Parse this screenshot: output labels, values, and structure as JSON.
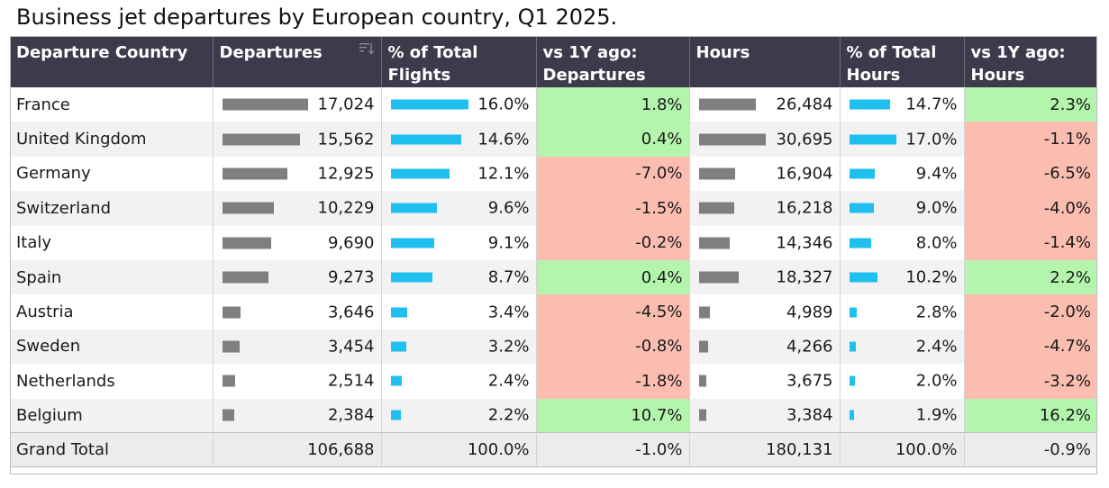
{
  "title": "Business jet departures by European country, Q1 2025.",
  "colors": {
    "header_bg": "#3d3b4b",
    "bar_grey": "#7f7f7f",
    "bar_blue": "#1fbff0",
    "positive": "#b3f5ac",
    "negative": "#fbbdb0"
  },
  "chart_data": {
    "type": "table",
    "title": "Business jet departures by European country, Q1 2025.",
    "columns": [
      "Departure Country",
      "Departures",
      "% of Total Flights",
      "vs 1Y ago: Departures",
      "Hours",
      "% of Total Hours",
      "vs 1Y ago: Hours"
    ],
    "rows": [
      {
        "country": "France",
        "departures": 17024,
        "departures_text": "17,024",
        "pct_flights": 16.0,
        "pct_flights_text": "16.0%",
        "yoy_dep": 1.8,
        "yoy_dep_text": "1.8%",
        "hours": 26484,
        "hours_text": "26,484",
        "pct_hours": 14.7,
        "pct_hours_text": "14.7%",
        "yoy_hours": 2.3,
        "yoy_hours_text": "2.3%"
      },
      {
        "country": "United Kingdom",
        "departures": 15562,
        "departures_text": "15,562",
        "pct_flights": 14.6,
        "pct_flights_text": "14.6%",
        "yoy_dep": 0.4,
        "yoy_dep_text": "0.4%",
        "hours": 30695,
        "hours_text": "30,695",
        "pct_hours": 17.0,
        "pct_hours_text": "17.0%",
        "yoy_hours": -1.1,
        "yoy_hours_text": "-1.1%"
      },
      {
        "country": "Germany",
        "departures": 12925,
        "departures_text": "12,925",
        "pct_flights": 12.1,
        "pct_flights_text": "12.1%",
        "yoy_dep": -7.0,
        "yoy_dep_text": "-7.0%",
        "hours": 16904,
        "hours_text": "16,904",
        "pct_hours": 9.4,
        "pct_hours_text": "9.4%",
        "yoy_hours": -6.5,
        "yoy_hours_text": "-6.5%"
      },
      {
        "country": "Switzerland",
        "departures": 10229,
        "departures_text": "10,229",
        "pct_flights": 9.6,
        "pct_flights_text": "9.6%",
        "yoy_dep": -1.5,
        "yoy_dep_text": "-1.5%",
        "hours": 16218,
        "hours_text": "16,218",
        "pct_hours": 9.0,
        "pct_hours_text": "9.0%",
        "yoy_hours": -4.0,
        "yoy_hours_text": "-4.0%"
      },
      {
        "country": "Italy",
        "departures": 9690,
        "departures_text": "9,690",
        "pct_flights": 9.1,
        "pct_flights_text": "9.1%",
        "yoy_dep": -0.2,
        "yoy_dep_text": "-0.2%",
        "hours": 14346,
        "hours_text": "14,346",
        "pct_hours": 8.0,
        "pct_hours_text": "8.0%",
        "yoy_hours": -1.4,
        "yoy_hours_text": "-1.4%"
      },
      {
        "country": "Spain",
        "departures": 9273,
        "departures_text": "9,273",
        "pct_flights": 8.7,
        "pct_flights_text": "8.7%",
        "yoy_dep": 0.4,
        "yoy_dep_text": "0.4%",
        "hours": 18327,
        "hours_text": "18,327",
        "pct_hours": 10.2,
        "pct_hours_text": "10.2%",
        "yoy_hours": 2.2,
        "yoy_hours_text": "2.2%"
      },
      {
        "country": "Austria",
        "departures": 3646,
        "departures_text": "3,646",
        "pct_flights": 3.4,
        "pct_flights_text": "3.4%",
        "yoy_dep": -4.5,
        "yoy_dep_text": "-4.5%",
        "hours": 4989,
        "hours_text": "4,989",
        "pct_hours": 2.8,
        "pct_hours_text": "2.8%",
        "yoy_hours": -2.0,
        "yoy_hours_text": "-2.0%"
      },
      {
        "country": "Sweden",
        "departures": 3454,
        "departures_text": "3,454",
        "pct_flights": 3.2,
        "pct_flights_text": "3.2%",
        "yoy_dep": -0.8,
        "yoy_dep_text": "-0.8%",
        "hours": 4266,
        "hours_text": "4,266",
        "pct_hours": 2.4,
        "pct_hours_text": "2.4%",
        "yoy_hours": -4.7,
        "yoy_hours_text": "-4.7%"
      },
      {
        "country": "Netherlands",
        "departures": 2514,
        "departures_text": "2,514",
        "pct_flights": 2.4,
        "pct_flights_text": "2.4%",
        "yoy_dep": -1.8,
        "yoy_dep_text": "-1.8%",
        "hours": 3675,
        "hours_text": "3,675",
        "pct_hours": 2.0,
        "pct_hours_text": "2.0%",
        "yoy_hours": -3.2,
        "yoy_hours_text": "-3.2%"
      },
      {
        "country": "Belgium",
        "departures": 2384,
        "departures_text": "2,384",
        "pct_flights": 2.2,
        "pct_flights_text": "2.2%",
        "yoy_dep": 10.7,
        "yoy_dep_text": "10.7%",
        "hours": 3384,
        "hours_text": "3,384",
        "pct_hours": 1.9,
        "pct_hours_text": "1.9%",
        "yoy_hours": 16.2,
        "yoy_hours_text": "16.2%"
      }
    ],
    "total": {
      "label": "Grand Total",
      "departures": 106688,
      "departures_text": "106,688",
      "pct_flights": 100.0,
      "pct_flights_text": "100.0%",
      "yoy_dep": -1.0,
      "yoy_dep_text": "-1.0%",
      "hours": 180131,
      "hours_text": "180,131",
      "pct_hours": 100.0,
      "pct_hours_text": "100.0%",
      "yoy_hours": -0.9,
      "yoy_hours_text": "-0.9%"
    },
    "sorted_by": "Departures",
    "sort_order": "descending"
  },
  "header": {
    "col_country": "Departure Country",
    "col_departures": "Departures",
    "col_pct_flights_1": "% of Total",
    "col_pct_flights_2": "Flights",
    "col_yoy_dep_1": "vs 1Y ago:",
    "col_yoy_dep_2": "Departures",
    "col_hours": "Hours",
    "col_pct_hours_1": "% of Total",
    "col_pct_hours_2": "Hours",
    "col_yoy_hours_1": "vs 1Y ago:",
    "col_yoy_hours_2": "Hours",
    "sort_icon": "sort-descending-icon"
  }
}
